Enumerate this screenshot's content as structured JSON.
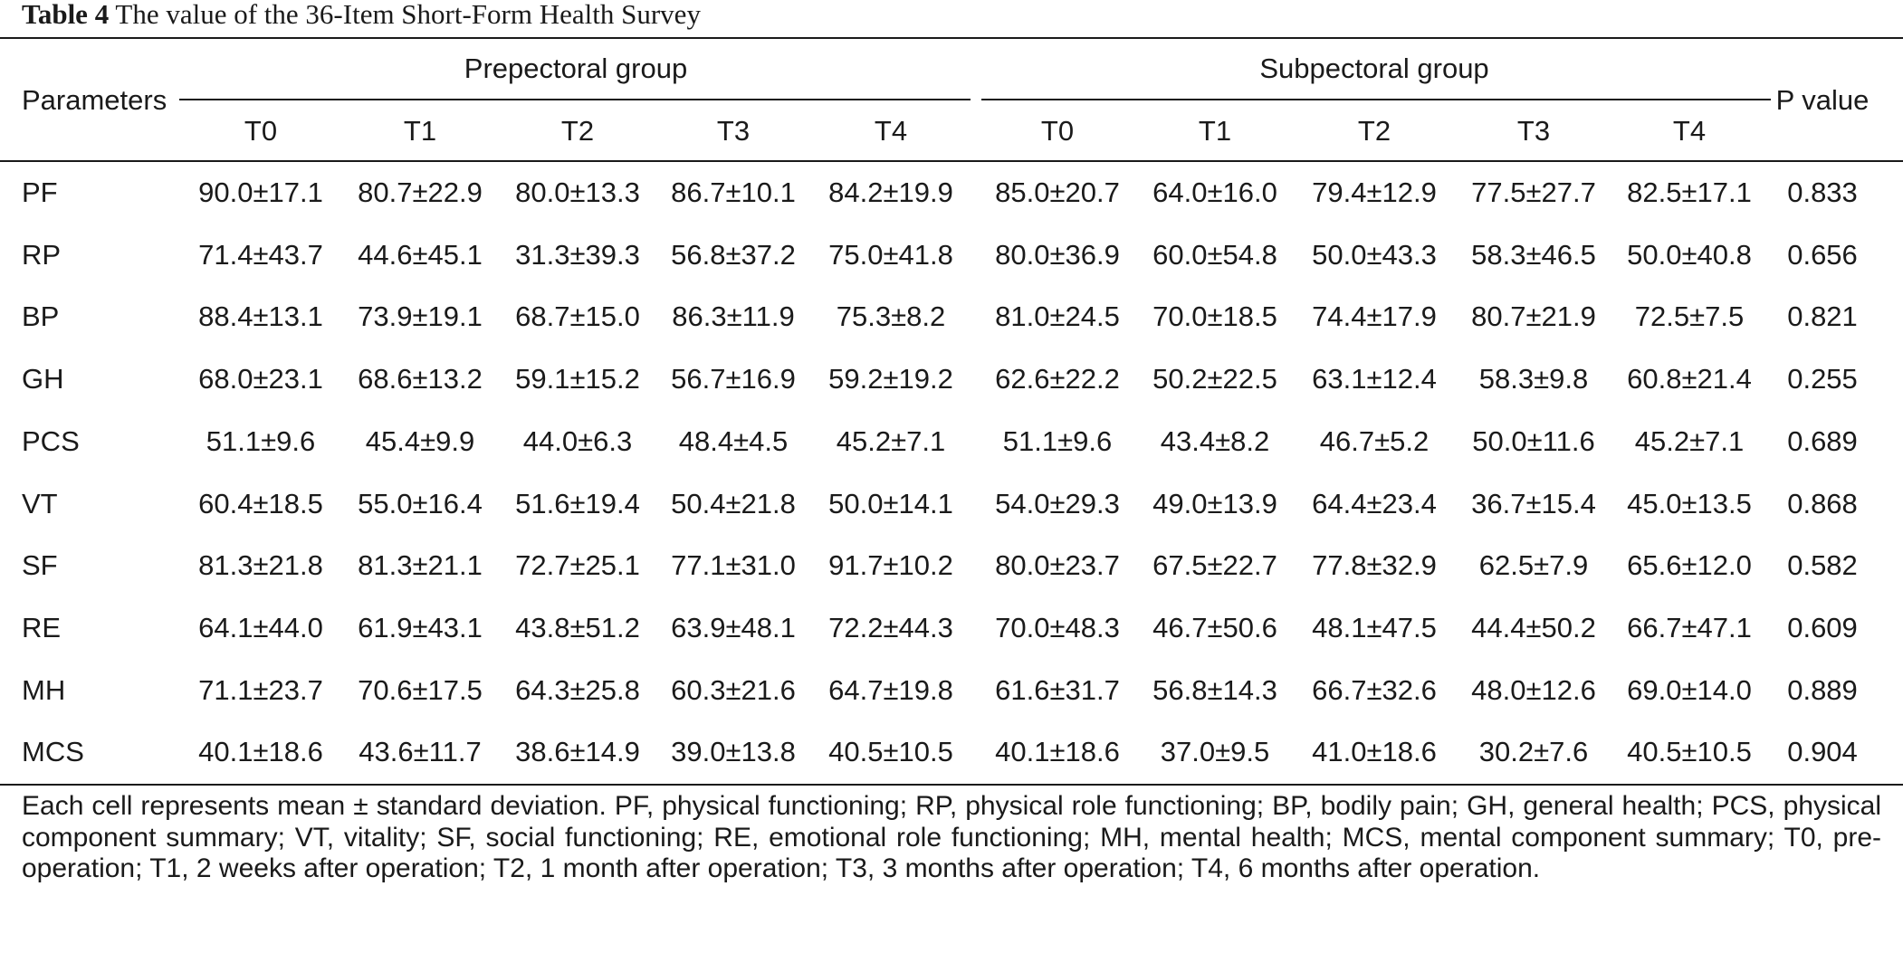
{
  "caption": {
    "label": "Table 4",
    "text": "The value of the 36-Item Short-Form Health Survey"
  },
  "table": {
    "row_header_label": "Parameters",
    "groups": [
      {
        "name": "Prepectoral group",
        "timepoints": [
          "T0",
          "T1",
          "T2",
          "T3",
          "T4"
        ]
      },
      {
        "name": "Subpectoral group",
        "timepoints": [
          "T0",
          "T1",
          "T2",
          "T3",
          "T4"
        ]
      }
    ],
    "p_value_label": "P value",
    "rows": [
      {
        "param": "PF",
        "pre": [
          "90.0±17.1",
          "80.7±22.9",
          "80.0±13.3",
          "86.7±10.1",
          "84.2±19.9"
        ],
        "sub": [
          "85.0±20.7",
          "64.0±16.0",
          "79.4±12.9",
          "77.5±27.7",
          "82.5±17.1"
        ],
        "p": "0.833"
      },
      {
        "param": "RP",
        "pre": [
          "71.4±43.7",
          "44.6±45.1",
          "31.3±39.3",
          "56.8±37.2",
          "75.0±41.8"
        ],
        "sub": [
          "80.0±36.9",
          "60.0±54.8",
          "50.0±43.3",
          "58.3±46.5",
          "50.0±40.8"
        ],
        "p": "0.656"
      },
      {
        "param": "BP",
        "pre": [
          "88.4±13.1",
          "73.9±19.1",
          "68.7±15.0",
          "86.3±11.9",
          "75.3±8.2"
        ],
        "sub": [
          "81.0±24.5",
          "70.0±18.5",
          "74.4±17.9",
          "80.7±21.9",
          "72.5±7.5"
        ],
        "p": "0.821"
      },
      {
        "param": "GH",
        "pre": [
          "68.0±23.1",
          "68.6±13.2",
          "59.1±15.2",
          "56.7±16.9",
          "59.2±19.2"
        ],
        "sub": [
          "62.6±22.2",
          "50.2±22.5",
          "63.1±12.4",
          "58.3±9.8",
          "60.8±21.4"
        ],
        "p": "0.255"
      },
      {
        "param": "PCS",
        "pre": [
          "51.1±9.6",
          "45.4±9.9",
          "44.0±6.3",
          "48.4±4.5",
          "45.2±7.1"
        ],
        "sub": [
          "51.1±9.6",
          "43.4±8.2",
          "46.7±5.2",
          "50.0±11.6",
          "45.2±7.1"
        ],
        "p": "0.689"
      },
      {
        "param": "VT",
        "pre": [
          "60.4±18.5",
          "55.0±16.4",
          "51.6±19.4",
          "50.4±21.8",
          "50.0±14.1"
        ],
        "sub": [
          "54.0±29.3",
          "49.0±13.9",
          "64.4±23.4",
          "36.7±15.4",
          "45.0±13.5"
        ],
        "p": "0.868"
      },
      {
        "param": "SF",
        "pre": [
          "81.3±21.8",
          "81.3±21.1",
          "72.7±25.1",
          "77.1±31.0",
          "91.7±10.2"
        ],
        "sub": [
          "80.0±23.7",
          "67.5±22.7",
          "77.8±32.9",
          "62.5±7.9",
          "65.6±12.0"
        ],
        "p": "0.582"
      },
      {
        "param": "RE",
        "pre": [
          "64.1±44.0",
          "61.9±43.1",
          "43.8±51.2",
          "63.9±48.1",
          "72.2±44.3"
        ],
        "sub": [
          "70.0±48.3",
          "46.7±50.6",
          "48.1±47.5",
          "44.4±50.2",
          "66.7±47.1"
        ],
        "p": "0.609"
      },
      {
        "param": "MH",
        "pre": [
          "71.1±23.7",
          "70.6±17.5",
          "64.3±25.8",
          "60.3±21.6",
          "64.7±19.8"
        ],
        "sub": [
          "61.6±31.7",
          "56.8±14.3",
          "66.7±32.6",
          "48.0±12.6",
          "69.0±14.0"
        ],
        "p": "0.889"
      },
      {
        "param": "MCS",
        "pre": [
          "40.1±18.6",
          "43.6±11.7",
          "38.6±14.9",
          "39.0±13.8",
          "40.5±10.5"
        ],
        "sub": [
          "40.1±18.6",
          "37.0±9.5",
          "41.0±18.6",
          "30.2±7.6",
          "40.5±10.5"
        ],
        "p": "0.904"
      }
    ]
  },
  "footnote": "Each cell represents mean ± standard deviation. PF, physical functioning; RP, physical role functioning; BP, bodily pain; GH, general health; PCS, physical component summary; VT, vitality; SF, social functioning; RE, emotional role functioning; MH, mental health; MCS, mental component summary; T0, pre-operation; T1, 2 weeks after operation; T2, 1 month after operation; T3, 3 months after operation; T4, 6 months after operation."
}
